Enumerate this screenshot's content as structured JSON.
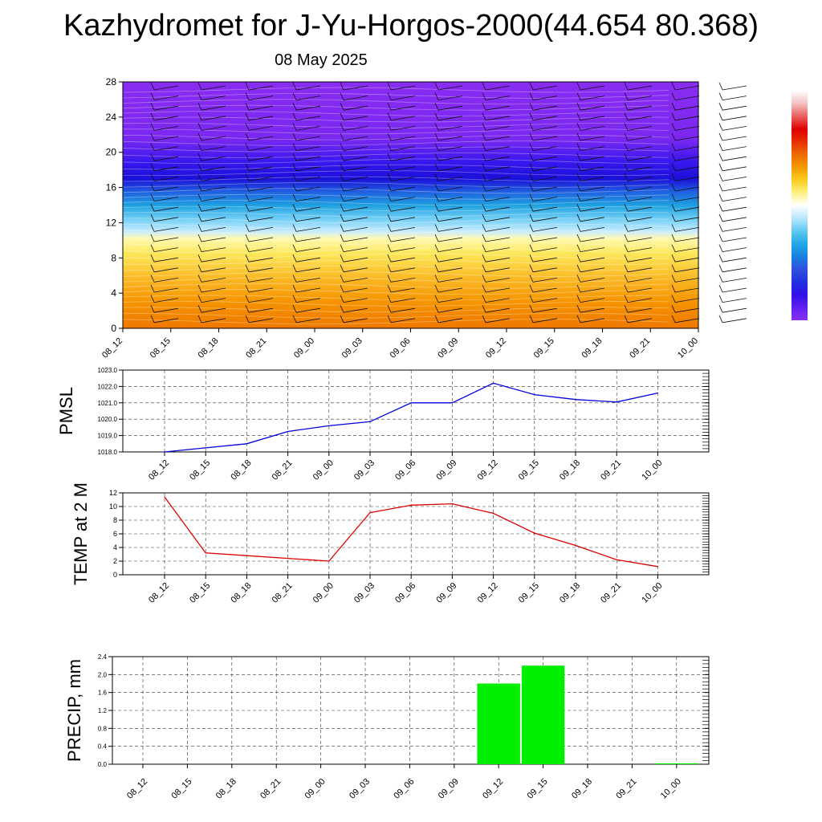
{
  "header": {
    "title": "Kazhydromet for J-Yu-Horgos-2000(44.654 80.368)",
    "date": "08 May 2025"
  },
  "time_labels": [
    "08_12",
    "08_15",
    "08_18",
    "08_21",
    "09_00",
    "09_03",
    "09_06",
    "09_09",
    "09_12",
    "09_15",
    "09_18",
    "09_21",
    "10_00"
  ],
  "colors": {
    "pmsl_line": "#0000dd",
    "temp_line": "#dd0000",
    "precip_bar": "#00ee00",
    "grid": "#333333"
  },
  "chart_data": [
    {
      "type": "heatmap",
      "name": "cross-section",
      "y_ticks": [
        0,
        4,
        8,
        12,
        16,
        20,
        24,
        28
      ],
      "ylim": [
        0,
        28
      ],
      "color_bands": [
        {
          "level": 0,
          "color": "#f07800"
        },
        {
          "level": 3,
          "color": "#f59400"
        },
        {
          "level": 6,
          "color": "#fbbe2a"
        },
        {
          "level": 8.5,
          "color": "#fde85a"
        },
        {
          "level": 10.2,
          "color": "#fff9b0"
        },
        {
          "level": 11,
          "color": "#c8ecff"
        },
        {
          "level": 12.5,
          "color": "#6ecdf5"
        },
        {
          "level": 14,
          "color": "#1da0e0"
        },
        {
          "level": 15.5,
          "color": "#2060e0"
        },
        {
          "level": 17,
          "color": "#1a10d8"
        },
        {
          "level": 19,
          "color": "#3a18f0"
        },
        {
          "level": 21.5,
          "color": "#7a28f0"
        },
        {
          "level": 28,
          "color": "#8a2cf2"
        }
      ],
      "colorbar": [
        "#ffffff",
        "#f4c0c0",
        "#ea6060",
        "#e00000",
        "#e83000",
        "#ee6a00",
        "#f49a00",
        "#fbcc20",
        "#fff280",
        "#ffffff",
        "#b8e6ff",
        "#60c8f0",
        "#20a8e8",
        "#1880e0",
        "#3050e0",
        "#2030e0",
        "#3010e8",
        "#6020f0",
        "#8a30f0"
      ]
    },
    {
      "type": "line",
      "name": "PMSL",
      "ylabel": "PMSL",
      "y_ticks": [
        "1018.0",
        "1019.0",
        "1020.0",
        "1021.0",
        "1022.0",
        "1023.0"
      ],
      "ylim": [
        1018.0,
        1023.0
      ],
      "values": [
        1018.0,
        1018.25,
        1018.5,
        1019.25,
        1019.6,
        1019.85,
        1021.0,
        1021.0,
        1022.2,
        1021.5,
        1021.2,
        1021.05,
        1021.6
      ]
    },
    {
      "type": "line",
      "name": "TEMP",
      "ylabel": "TEMP at 2 M",
      "y_ticks": [
        "0",
        "2",
        "4",
        "6",
        "8",
        "10",
        "12"
      ],
      "ylim": [
        0,
        12
      ],
      "values": [
        11.4,
        3.2,
        2.8,
        2.4,
        2.0,
        9.1,
        10.2,
        10.4,
        9.0,
        6.1,
        4.3,
        2.2,
        1.2
      ]
    },
    {
      "type": "bar",
      "name": "PRECIP",
      "ylabel": "PRECIP, mm",
      "y_ticks": [
        "0.0",
        "0.4",
        "0.8",
        "1.2",
        "1.6",
        "2.0",
        "2.4"
      ],
      "ylim": [
        0,
        2.4
      ],
      "values": [
        0,
        0,
        0,
        0,
        0,
        0,
        0,
        0,
        1.8,
        2.2,
        0,
        0,
        0.02
      ]
    }
  ]
}
